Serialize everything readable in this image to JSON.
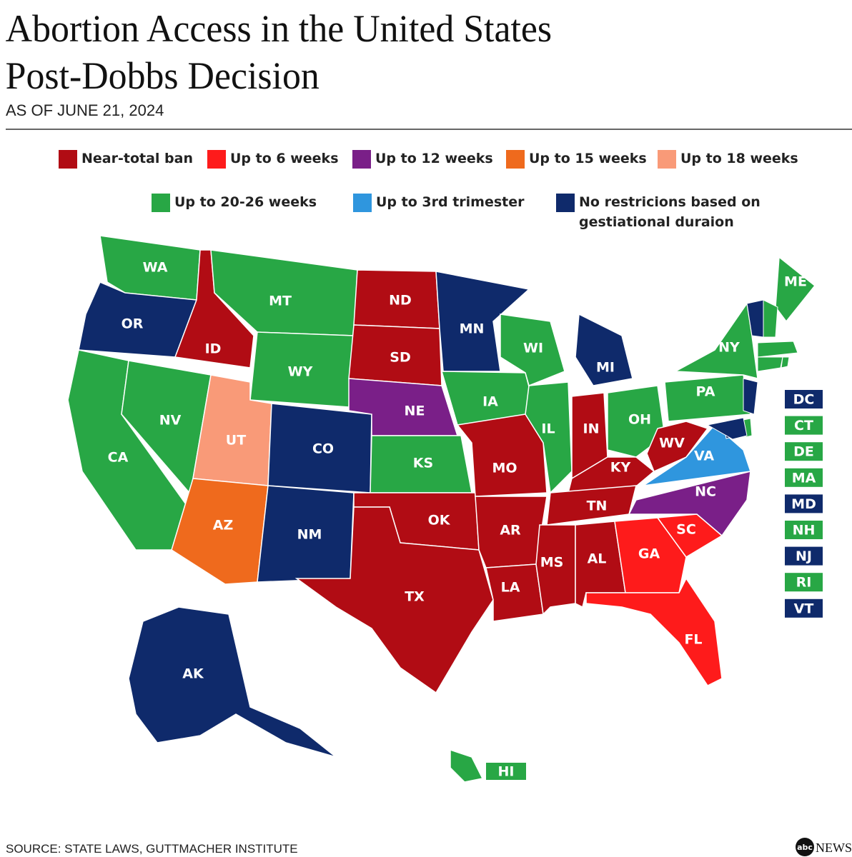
{
  "header": {
    "title_lines": [
      "Abortion Access in the United States",
      "Post-Dobbs Decision"
    ],
    "subtitle": "AS OF JUNE 21, 2024"
  },
  "legend": [
    {
      "label": "Near-total ban",
      "color": "#b10c14"
    },
    {
      "label": "Up to 6 weeks",
      "color": "#fe1b1b"
    },
    {
      "label": "Up to 12 weeks",
      "color": "#7a1f88"
    },
    {
      "label": "Up to 15 weeks",
      "color": "#ef6a1d"
    },
    {
      "label": "Up to 18 weeks",
      "color": "#f99a78"
    },
    {
      "label": "Up to 20-26 weeks",
      "color": "#28a745"
    },
    {
      "label": "Up to 3rd trimester",
      "color": "#2f96de"
    },
    {
      "label": "No restricions based on gestiational duraion",
      "color": "#0f2a6b"
    }
  ],
  "states": [
    {
      "abbr": "WA",
      "category": 5
    },
    {
      "abbr": "OR",
      "category": 7
    },
    {
      "abbr": "CA",
      "category": 5
    },
    {
      "abbr": "NV",
      "category": 5
    },
    {
      "abbr": "ID",
      "category": 0
    },
    {
      "abbr": "MT",
      "category": 5
    },
    {
      "abbr": "WY",
      "category": 5
    },
    {
      "abbr": "UT",
      "category": 4
    },
    {
      "abbr": "AZ",
      "category": 3
    },
    {
      "abbr": "CO",
      "category": 7
    },
    {
      "abbr": "NM",
      "category": 7
    },
    {
      "abbr": "ND",
      "category": 0
    },
    {
      "abbr": "SD",
      "category": 0
    },
    {
      "abbr": "NE",
      "category": 2
    },
    {
      "abbr": "KS",
      "category": 5
    },
    {
      "abbr": "OK",
      "category": 0
    },
    {
      "abbr": "TX",
      "category": 0
    },
    {
      "abbr": "MN",
      "category": 7
    },
    {
      "abbr": "IA",
      "category": 5
    },
    {
      "abbr": "MO",
      "category": 0
    },
    {
      "abbr": "AR",
      "category": 0
    },
    {
      "abbr": "LA",
      "category": 0
    },
    {
      "abbr": "WI",
      "category": 5
    },
    {
      "abbr": "IL",
      "category": 5
    },
    {
      "abbr": "MI",
      "category": 7
    },
    {
      "abbr": "IN",
      "category": 0
    },
    {
      "abbr": "OH",
      "category": 5
    },
    {
      "abbr": "KY",
      "category": 0
    },
    {
      "abbr": "TN",
      "category": 0
    },
    {
      "abbr": "MS",
      "category": 0
    },
    {
      "abbr": "AL",
      "category": 0
    },
    {
      "abbr": "GA",
      "category": 1
    },
    {
      "abbr": "SC",
      "category": 1
    },
    {
      "abbr": "FL",
      "category": 1
    },
    {
      "abbr": "NC",
      "category": 2
    },
    {
      "abbr": "VA",
      "category": 6
    },
    {
      "abbr": "WV",
      "category": 0
    },
    {
      "abbr": "PA",
      "category": 5
    },
    {
      "abbr": "NY",
      "category": 5
    },
    {
      "abbr": "ME",
      "category": 5
    },
    {
      "abbr": "AK",
      "category": 7
    },
    {
      "abbr": "HI",
      "category": 5
    }
  ],
  "small_states": [
    {
      "abbr": "DC",
      "category": 7
    },
    {
      "abbr": "CT",
      "category": 5
    },
    {
      "abbr": "DE",
      "category": 5
    },
    {
      "abbr": "MA",
      "category": 5
    },
    {
      "abbr": "MD",
      "category": 7
    },
    {
      "abbr": "NH",
      "category": 5
    },
    {
      "abbr": "NJ",
      "category": 7
    },
    {
      "abbr": "RI",
      "category": 5
    },
    {
      "abbr": "VT",
      "category": 7
    }
  ],
  "footer": {
    "source": "SOURCE: STATE LAWS, GUTTMACHER INSTITUTE",
    "logo": "abc",
    "brand": "NEWS"
  }
}
